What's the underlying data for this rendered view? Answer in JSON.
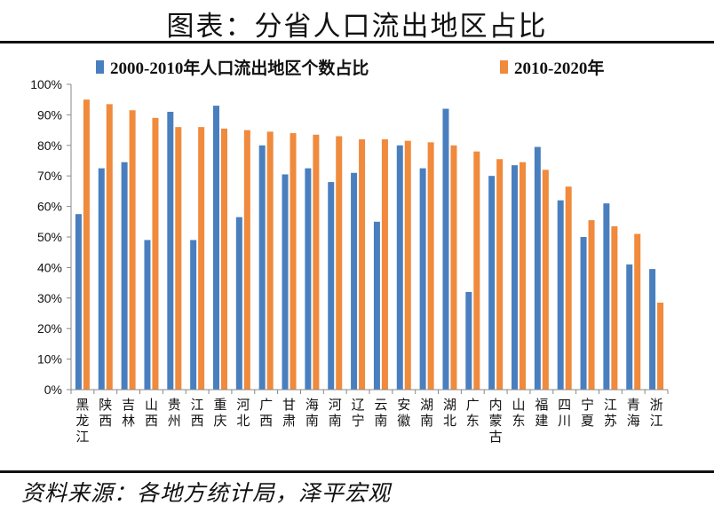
{
  "header": {
    "title": "图表：分省人口流出地区占比"
  },
  "footer": {
    "source": "资料来源：各地方统计局，泽平宏观"
  },
  "chart_data": {
    "type": "bar",
    "title": "图表：分省人口流出地区占比",
    "xlabel": "",
    "ylabel": "",
    "ylim": [
      0,
      100
    ],
    "ytick_labels": [
      "0%",
      "10%",
      "20%",
      "30%",
      "40%",
      "50%",
      "60%",
      "70%",
      "80%",
      "90%",
      "100%"
    ],
    "legend_position": "top",
    "grid": false,
    "categories": [
      "黑龙江",
      "陕西",
      "吉林",
      "山西",
      "贵州",
      "江西",
      "重庆",
      "河北",
      "广西",
      "甘肃",
      "海南",
      "河南",
      "辽宁",
      "云南",
      "安徽",
      "湖南",
      "湖北",
      "广东",
      "内蒙古",
      "山东",
      "福建",
      "四川",
      "宁夏",
      "江苏",
      "青海",
      "浙江"
    ],
    "series": [
      {
        "name": "2000-2010年人口流出地区个数占比",
        "color": "#4a7fbf",
        "values": [
          57.5,
          72.5,
          74.5,
          49,
          91,
          49,
          93,
          56.5,
          80,
          70.5,
          72.5,
          68,
          71,
          55,
          80,
          72.5,
          92,
          32,
          70,
          73.5,
          79.5,
          62,
          50,
          61,
          41,
          39.5
        ]
      },
      {
        "name": "2010-2020年",
        "color": "#f08a3c",
        "values": [
          95,
          93.5,
          91.5,
          89,
          86,
          86,
          85.5,
          85,
          84.5,
          84,
          83.5,
          83,
          82,
          82,
          81.5,
          81,
          80,
          78,
          75.5,
          74.5,
          72,
          66.5,
          55.5,
          53.5,
          51,
          28.5
        ]
      }
    ]
  }
}
